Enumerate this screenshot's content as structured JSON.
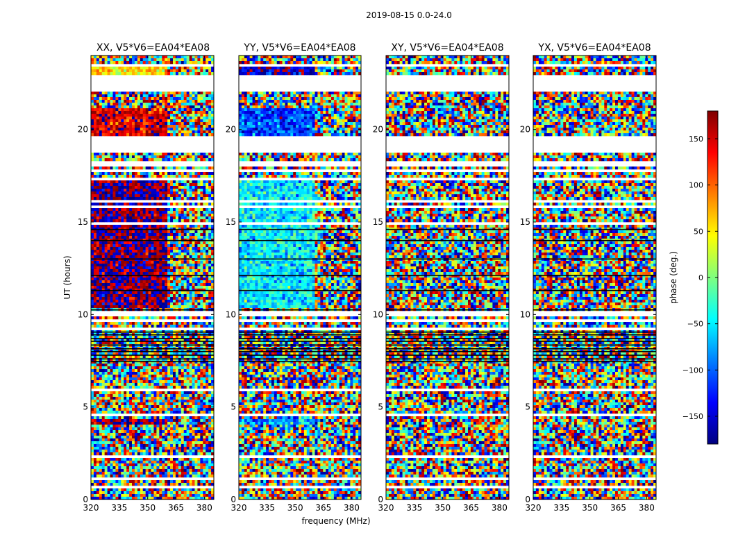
{
  "figure": {
    "suptitle": "2019-08-15 0.0-24.0",
    "xlabel": "frequency (MHz)",
    "ylabel": "UT (hours)"
  },
  "colorbar": {
    "label": "phase (deg.)",
    "range": [
      -180,
      180
    ],
    "ticks": [
      150,
      100,
      50,
      0,
      -50,
      -100,
      -150
    ],
    "tick_labels": [
      "150",
      "100",
      "50",
      "0",
      "−50",
      "−100",
      "−150"
    ],
    "colormap": [
      "#00007f",
      "#0000ff",
      "#007fff",
      "#00ffff",
      "#7fff7f",
      "#ffff00",
      "#ff7f00",
      "#ff0000",
      "#7f0000"
    ]
  },
  "chart_data": [
    {
      "type": "heatmap",
      "title": "XX, V5*V6=EA04*EA08",
      "xlim": [
        320,
        385
      ],
      "ylim": [
        0,
        24
      ],
      "xticks": [
        320,
        335,
        350,
        365,
        380
      ],
      "yticks": [
        0,
        5,
        10,
        15,
        20
      ],
      "xtick_labels": [
        "320",
        "335",
        "350",
        "365",
        "380"
      ],
      "ytick_labels": [
        "0",
        "5",
        "10",
        "15",
        "20"
      ],
      "z_units": "phase (deg.)",
      "structured_regions": [
        {
          "ut_range": [
            22.9,
            23.4
          ],
          "freq_range": [
            320,
            361
          ],
          "phase_deg": 60
        },
        {
          "ut_range": [
            19.6,
            21.2
          ],
          "freq_range": [
            320,
            361
          ],
          "phase_deg": 150
        },
        {
          "ut_range": [
            10.3,
            17.2
          ],
          "freq_range": [
            320,
            361
          ],
          "phase_deg": 180
        },
        {
          "ut_range": [
            4.0,
            4.3
          ],
          "freq_range": [
            320,
            361
          ],
          "phase_deg": 170
        }
      ]
    },
    {
      "type": "heatmap",
      "title": "YY, V5*V6=EA04*EA08",
      "xlim": [
        320,
        385
      ],
      "ylim": [
        0,
        24
      ],
      "xticks": [
        320,
        335,
        350,
        365,
        380
      ],
      "yticks": [
        0,
        5,
        10,
        15,
        20
      ],
      "xtick_labels": [
        "320",
        "335",
        "350",
        "365",
        "380"
      ],
      "ytick_labels": [
        "0",
        "5",
        "10",
        "15",
        "20"
      ],
      "z_units": "phase (deg.)",
      "structured_regions": [
        {
          "ut_range": [
            22.9,
            23.4
          ],
          "freq_range": [
            320,
            361
          ],
          "phase_deg": -160
        },
        {
          "ut_range": [
            19.6,
            21.2
          ],
          "freq_range": [
            320,
            361
          ],
          "phase_deg": -110
        },
        {
          "ut_range": [
            10.3,
            17.2
          ],
          "freq_range": [
            320,
            361
          ],
          "phase_deg": -50
        },
        {
          "ut_range": [
            4.0,
            4.3
          ],
          "freq_range": [
            320,
            361
          ],
          "phase_deg": -70
        }
      ]
    },
    {
      "type": "heatmap",
      "title": "XY, V5*V6=EA04*EA08",
      "xlim": [
        320,
        385
      ],
      "ylim": [
        0,
        24
      ],
      "xticks": [
        320,
        335,
        350,
        365,
        380
      ],
      "yticks": [
        0,
        5,
        10,
        15,
        20
      ],
      "xtick_labels": [
        "320",
        "335",
        "350",
        "365",
        "380"
      ],
      "ytick_labels": [
        "0",
        "5",
        "10",
        "15",
        "20"
      ],
      "z_units": "phase (deg.)",
      "structured_regions": []
    },
    {
      "type": "heatmap",
      "title": "YX, V5*V6=EA04*EA08",
      "xlim": [
        320,
        385
      ],
      "ylim": [
        0,
        24
      ],
      "xticks": [
        320,
        335,
        350,
        365,
        380
      ],
      "yticks": [
        0,
        5,
        10,
        15,
        20
      ],
      "xtick_labels": [
        "320",
        "335",
        "350",
        "365",
        "380"
      ],
      "ytick_labels": [
        "0",
        "5",
        "10",
        "15",
        "20"
      ],
      "z_units": "phase (deg.)",
      "structured_regions": []
    }
  ],
  "flagged_ut_ranges": [
    [
      0.55,
      0.7
    ],
    [
      1.1,
      1.25
    ],
    [
      2.2,
      2.35
    ],
    [
      3.4,
      3.5
    ],
    [
      4.45,
      4.6
    ],
    [
      5.9,
      6.0
    ],
    [
      7.0,
      7.1
    ],
    [
      9.2,
      9.35
    ],
    [
      9.6,
      9.75
    ],
    [
      9.95,
      10.15
    ],
    [
      14.9,
      15.0
    ],
    [
      15.7,
      15.85
    ],
    [
      16.1,
      16.2
    ],
    [
      17.3,
      17.45
    ],
    [
      17.65,
      17.9
    ],
    [
      18.05,
      18.25
    ],
    [
      18.8,
      19.6
    ],
    [
      21.25,
      21.35
    ],
    [
      22.0,
      22.9
    ],
    [
      23.45,
      23.6
    ]
  ],
  "dark_ut_lines": [
    7.45,
    7.6,
    7.8,
    8.0,
    8.15,
    8.35,
    8.55,
    8.7,
    8.9,
    9.05,
    10.25,
    11.3,
    12.1,
    13.0,
    14.0,
    14.6
  ]
}
